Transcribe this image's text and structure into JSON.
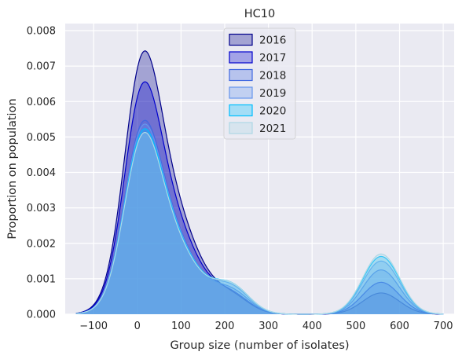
{
  "chart_data": {
    "type": "area",
    "subtype": "kde",
    "title": "HC10",
    "xlabel": "Group size (number of isolates)",
    "ylabel": "Proportion on population",
    "xlim": [
      -165,
      725
    ],
    "ylim": [
      0,
      0.0082
    ],
    "xticks": [
      -100,
      0,
      100,
      200,
      300,
      400,
      500,
      600,
      700
    ],
    "xtick_labels": [
      "−100",
      "0",
      "100",
      "200",
      "300",
      "400",
      "500",
      "600",
      "700"
    ],
    "yticks": [
      0,
      0.001,
      0.002,
      0.003,
      0.004,
      0.005,
      0.006,
      0.007,
      0.008
    ],
    "ytick_labels": [
      "0.000",
      "0.001",
      "0.002",
      "0.003",
      "0.004",
      "0.005",
      "0.006",
      "0.007",
      "0.008"
    ],
    "grid": true,
    "background": "#eaeaf2",
    "legend_position": "upper-center",
    "series": [
      {
        "name": "2016",
        "color": "#00008b",
        "fill_alpha": 0.3,
        "peak_x": 15,
        "peak_y": 0.00785,
        "shoulder_y": 0.00045,
        "second_peak_y": 0.0006
      },
      {
        "name": "2017",
        "color": "#0000cd",
        "fill_alpha": 0.3,
        "peak_x": 15,
        "peak_y": 0.00693,
        "shoulder_y": 0.0005,
        "second_peak_y": 0.0009
      },
      {
        "name": "2018",
        "color": "#4169e1",
        "fill_alpha": 0.3,
        "peak_x": 15,
        "peak_y": 0.00578,
        "shoulder_y": 0.0006,
        "second_peak_y": 0.00125
      },
      {
        "name": "2019",
        "color": "#6495ed",
        "fill_alpha": 0.3,
        "peak_x": 15,
        "peak_y": 0.00567,
        "shoulder_y": 0.0007,
        "second_peak_y": 0.0015
      },
      {
        "name": "2020",
        "color": "#00bfff",
        "fill_alpha": 0.3,
        "peak_x": 15,
        "peak_y": 0.00553,
        "shoulder_y": 0.00075,
        "second_peak_y": 0.00163
      },
      {
        "name": "2021",
        "color": "#add8e6",
        "fill_alpha": 0.3,
        "peak_x": 15,
        "peak_y": 0.00542,
        "shoulder_y": 0.00075,
        "second_peak_y": 0.0017
      }
    ]
  }
}
